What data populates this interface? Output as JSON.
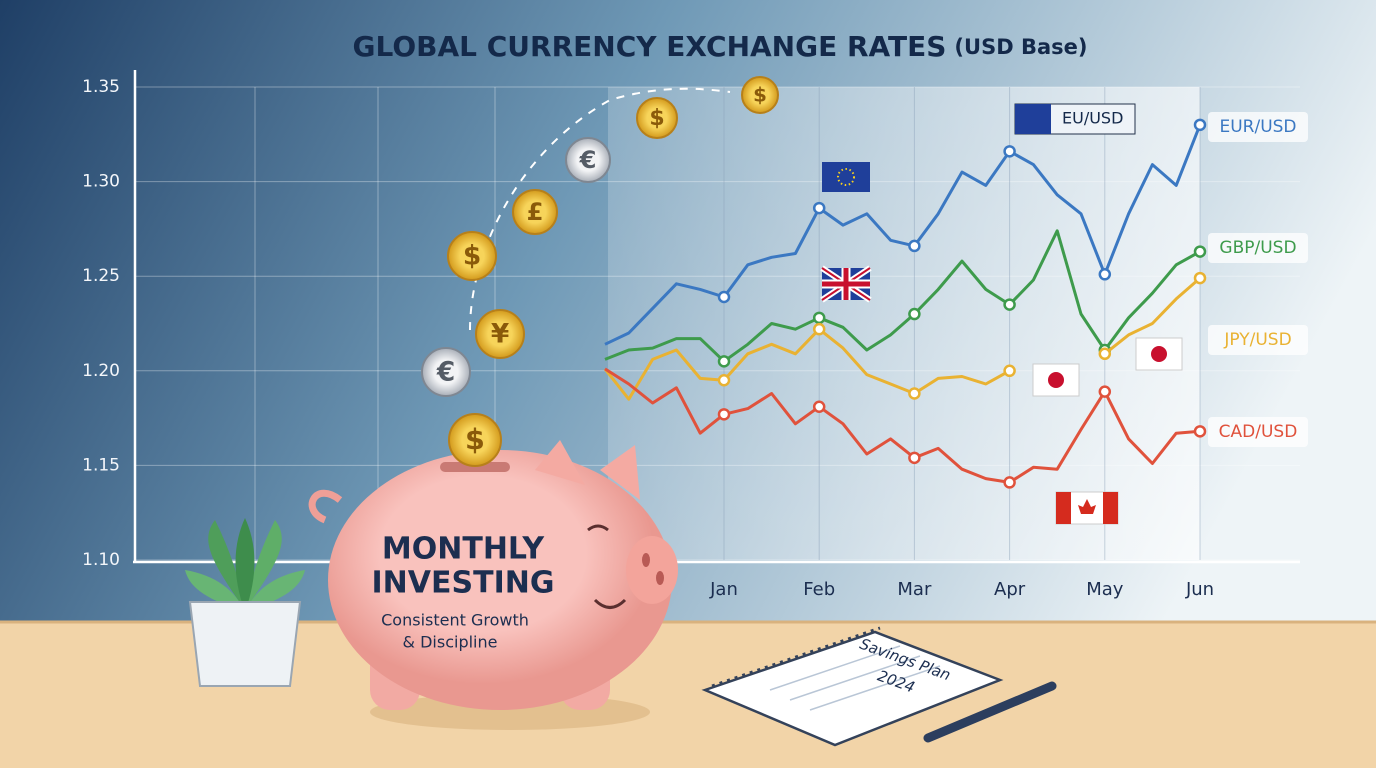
{
  "chart_data": {
    "type": "line",
    "title": "GLOBAL CURRENCY EXCHANGE RATES",
    "subtitle": "(USD Base)",
    "categories": [
      null,
      null,
      null,
      null,
      null,
      "Jan",
      null,
      null,
      null,
      "Feb",
      null,
      null,
      null,
      "Mar",
      null,
      null,
      null,
      "Apr",
      null,
      null,
      null,
      "May",
      null,
      null,
      null,
      "Jun"
    ],
    "ylim": [
      1.1,
      1.35
    ],
    "yticks": [
      {
        "value": 1.1,
        "label": "1.10"
      },
      1.15,
      {
        "value": 1.2,
        "label": "1.20"
      },
      1.25,
      {
        "value": 1.3,
        "label": "1.30"
      },
      1.35
    ],
    "grid": true,
    "series": [
      {
        "name": "EUR/USD",
        "color": "#3b78c2",
        "values": [
          1.214,
          1.22,
          1.233,
          1.246,
          1.243,
          1.239,
          1.256,
          1.26,
          1.262,
          1.286,
          1.277,
          1.283,
          1.269,
          1.266,
          1.283,
          1.305,
          1.298,
          1.316,
          1.309,
          1.293,
          1.283,
          1.251,
          1.283,
          1.309,
          1.298,
          1.33
        ]
      },
      {
        "name": "GBP/USD",
        "color": "#3e9b4c",
        "values": [
          1.206,
          1.211,
          1.212,
          1.217,
          1.217,
          1.205,
          1.214,
          1.225,
          1.222,
          1.228,
          1.223,
          1.211,
          1.219,
          1.23,
          1.243,
          1.258,
          1.243,
          1.235,
          1.248,
          1.274,
          1.23,
          1.211,
          1.228,
          1.241,
          1.256,
          1.263
        ]
      },
      {
        "name": "JPY/USD",
        "color": "#e9b232",
        "values": [
          1.201,
          1.185,
          1.206,
          1.211,
          1.196,
          1.195,
          1.209,
          1.214,
          1.209,
          1.222,
          1.212,
          1.198,
          1.193,
          1.188,
          1.196,
          1.197,
          1.193,
          1.2,
          null,
          null,
          null,
          1.209,
          1.219,
          1.225,
          1.238,
          1.249
        ]
      },
      {
        "name": "CAD/USD",
        "color": "#e0523c",
        "values": [
          1.201,
          1.193,
          1.183,
          1.191,
          1.167,
          1.177,
          1.18,
          1.188,
          1.172,
          1.181,
          1.172,
          1.156,
          1.164,
          1.154,
          1.159,
          1.148,
          1.143,
          1.141,
          1.149,
          1.148,
          1.169,
          1.189,
          1.164,
          1.151,
          1.167,
          1.168
        ]
      }
    ],
    "annotations": [
      "EU/USD"
    ]
  },
  "illustration": {
    "pig_title": [
      "MONTHLY",
      "INVESTING"
    ],
    "pig_subtitle": [
      "Consistent Growth",
      "& Discipline"
    ],
    "notebook": [
      "Savings Plan",
      "2024"
    ],
    "coins": [
      "$",
      "$",
      "€",
      "£",
      "$",
      "¥",
      "€",
      "$"
    ]
  }
}
